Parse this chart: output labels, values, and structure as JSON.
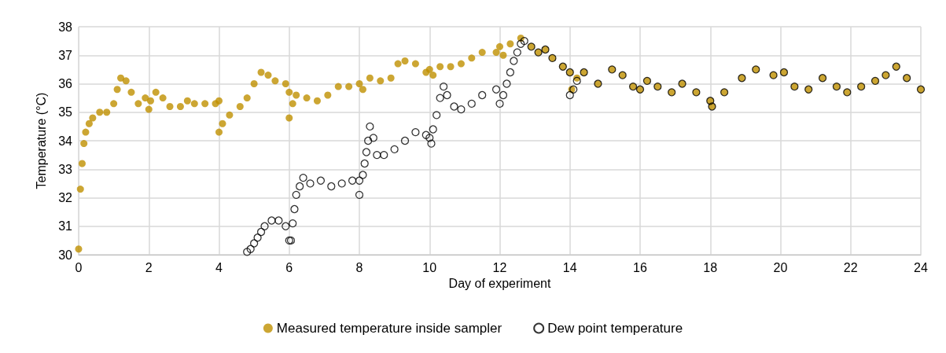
{
  "chart_data": {
    "type": "scatter",
    "xlabel": "Day of experiment",
    "ylabel": "Temperature (°C)",
    "xlim": [
      0,
      24
    ],
    "xticks": [
      0,
      2,
      4,
      6,
      8,
      10,
      12,
      14,
      16,
      18,
      20,
      22,
      24
    ],
    "ylim": [
      30,
      38
    ],
    "yticks": [
      30,
      31,
      32,
      33,
      34,
      35,
      36,
      37,
      38
    ],
    "grid": true,
    "legend": "bottom",
    "marker": "circle",
    "series": [
      {
        "name": "Measured temperature inside sampler",
        "color": "#bf9000",
        "x": [
          0,
          0.05,
          0.1,
          0.15,
          0.2,
          0.3,
          0.4,
          0.6,
          0.8,
          1.0,
          1.1,
          1.2,
          1.35,
          1.5,
          1.7,
          1.9,
          2.0,
          2.05,
          2.2,
          2.4,
          2.6,
          2.9,
          3.1,
          3.3,
          3.6,
          3.9,
          4.0,
          4.0,
          4.1,
          4.3,
          4.6,
          4.8,
          5.0,
          5.2,
          5.4,
          5.6,
          5.9,
          6.0,
          6.0,
          6.1,
          6.2,
          6.5,
          6.8,
          7.1,
          7.4,
          7.7,
          8.0,
          8.1,
          8.3,
          8.6,
          8.9,
          9.1,
          9.3,
          9.6,
          9.9,
          10.0,
          10.1,
          10.3,
          10.6,
          10.9,
          11.2,
          11.5,
          11.9,
          12.0,
          12.1,
          12.3,
          12.6,
          12.9,
          13.1,
          13.3,
          13.5,
          13.8,
          14.0,
          14.05,
          14.2,
          14.4,
          14.8,
          15.2,
          15.5,
          15.8,
          16.0,
          16.2,
          16.5,
          16.9,
          17.2,
          17.6,
          18.0,
          18.05,
          18.4,
          18.9,
          19.3,
          19.8,
          20.1,
          20.4,
          20.8,
          21.2,
          21.6,
          21.9,
          22.3,
          22.7,
          23.0,
          23.3,
          23.6,
          24.0
        ],
        "values": [
          30.2,
          32.3,
          33.2,
          33.9,
          34.3,
          34.6,
          34.8,
          35.0,
          35.0,
          35.3,
          35.8,
          36.2,
          36.1,
          35.7,
          35.3,
          35.5,
          35.1,
          35.4,
          35.7,
          35.5,
          35.2,
          35.2,
          35.4,
          35.3,
          35.3,
          35.3,
          35.4,
          34.3,
          34.6,
          34.9,
          35.2,
          35.5,
          36.0,
          36.4,
          36.3,
          36.1,
          36.0,
          35.7,
          34.8,
          35.3,
          35.6,
          35.5,
          35.4,
          35.6,
          35.9,
          35.9,
          36.0,
          35.8,
          36.2,
          36.1,
          36.2,
          36.7,
          36.8,
          36.7,
          36.4,
          36.5,
          36.3,
          36.6,
          36.6,
          36.7,
          36.9,
          37.1,
          37.1,
          37.3,
          37.0,
          37.4,
          37.6,
          37.3,
          37.1,
          37.2,
          36.9,
          36.6,
          36.4,
          35.8,
          36.2,
          36.4,
          36.0,
          36.5,
          36.3,
          35.9,
          35.8,
          36.1,
          35.9,
          35.7,
          36.0,
          35.7,
          35.4,
          35.2,
          35.7,
          36.2,
          36.5,
          36.3,
          36.4,
          35.9,
          35.8,
          36.2,
          35.9,
          35.7,
          35.9,
          36.1,
          36.3,
          36.6,
          36.2,
          35.8
        ]
      },
      {
        "name": "Dew point temperature",
        "color": "#000000",
        "x": [
          4.8,
          4.9,
          5.0,
          5.1,
          5.2,
          5.3,
          5.5,
          5.7,
          5.9,
          6.0,
          6.05,
          6.1,
          6.15,
          6.2,
          6.3,
          6.4,
          6.6,
          6.9,
          7.2,
          7.5,
          7.8,
          8.0,
          8.0,
          8.1,
          8.15,
          8.2,
          8.25,
          8.3,
          8.4,
          8.5,
          8.7,
          9.0,
          9.3,
          9.6,
          9.9,
          10.0,
          10.05,
          10.1,
          10.2,
          10.3,
          10.4,
          10.5,
          10.7,
          10.9,
          11.2,
          11.5,
          11.9,
          12.0,
          12.1,
          12.2,
          12.3,
          12.4,
          12.5,
          12.6,
          12.7,
          12.9,
          13.1,
          13.3,
          13.5,
          13.8,
          14.0,
          14.0,
          14.1,
          14.2,
          14.4,
          14.8,
          15.2,
          15.5,
          15.8,
          16.0,
          16.2,
          16.5,
          16.9,
          17.2,
          17.6,
          18.0,
          18.05,
          18.4,
          18.9,
          19.3,
          19.8,
          20.1,
          20.4,
          20.8,
          21.2,
          21.6,
          21.9,
          22.3,
          22.7,
          23.0,
          23.3,
          23.6,
          24.0
        ],
        "values": [
          30.1,
          30.2,
          30.4,
          30.6,
          30.8,
          31.0,
          31.2,
          31.2,
          31.0,
          30.5,
          30.5,
          31.1,
          31.6,
          32.1,
          32.4,
          32.7,
          32.5,
          32.6,
          32.4,
          32.5,
          32.6,
          32.6,
          32.1,
          32.8,
          33.2,
          33.6,
          34.0,
          34.5,
          34.1,
          33.5,
          33.5,
          33.7,
          34.0,
          34.3,
          34.2,
          34.1,
          33.9,
          34.4,
          34.9,
          35.5,
          35.9,
          35.6,
          35.2,
          35.1,
          35.3,
          35.6,
          35.8,
          35.3,
          35.6,
          36.0,
          36.4,
          36.8,
          37.1,
          37.4,
          37.5,
          37.3,
          37.1,
          37.2,
          36.9,
          36.6,
          36.4,
          35.6,
          35.8,
          36.1,
          36.4,
          36.0,
          36.5,
          36.3,
          35.9,
          35.8,
          36.1,
          35.9,
          35.7,
          36.0,
          35.7,
          35.4,
          35.2,
          35.7,
          36.2,
          36.5,
          36.3,
          36.4,
          35.9,
          35.8,
          36.2,
          35.9,
          35.7,
          35.9,
          36.1,
          36.3,
          36.6,
          36.2,
          35.8
        ]
      }
    ]
  }
}
